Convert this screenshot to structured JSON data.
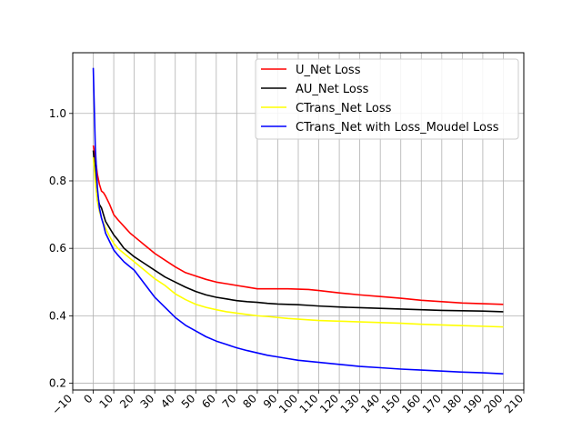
{
  "chart_data": {
    "type": "line",
    "title": "",
    "xlabel": "",
    "ylabel": "",
    "xlim": [
      -10,
      210
    ],
    "ylim": [
      0.18,
      1.18
    ],
    "x_ticks": [
      -10,
      0,
      10,
      20,
      30,
      40,
      50,
      60,
      70,
      80,
      90,
      100,
      110,
      120,
      130,
      140,
      150,
      160,
      170,
      180,
      190,
      200,
      210
    ],
    "y_ticks": [
      0.2,
      0.4,
      0.6,
      0.8,
      1.0
    ],
    "x_tick_labels": [
      "−10",
      "0",
      "10",
      "20",
      "30",
      "40",
      "50",
      "60",
      "70",
      "80",
      "90",
      "100",
      "110",
      "120",
      "130",
      "140",
      "150",
      "160",
      "170",
      "180",
      "190",
      "200",
      "210"
    ],
    "y_tick_labels": [
      "0.2",
      "0.4",
      "0.6",
      "0.8",
      "1.0"
    ],
    "grid": true,
    "legend_position": "top-right",
    "x": [
      0,
      1,
      2,
      3,
      4,
      5,
      6,
      8,
      10,
      12,
      15,
      18,
      20,
      25,
      30,
      35,
      40,
      45,
      50,
      55,
      60,
      65,
      70,
      75,
      80,
      85,
      90,
      95,
      100,
      105,
      110,
      120,
      130,
      140,
      150,
      160,
      170,
      180,
      190,
      200
    ],
    "series": [
      {
        "name": "U_Net Loss",
        "color": "#ff0000",
        "values": [
          0.905,
          0.87,
          0.82,
          0.79,
          0.77,
          0.765,
          0.755,
          0.73,
          0.7,
          0.685,
          0.665,
          0.645,
          0.635,
          0.61,
          0.585,
          0.565,
          0.545,
          0.528,
          0.518,
          0.508,
          0.5,
          0.495,
          0.49,
          0.485,
          0.48,
          0.48,
          0.48,
          0.48,
          0.479,
          0.478,
          0.475,
          0.468,
          0.462,
          0.457,
          0.452,
          0.446,
          0.442,
          0.438,
          0.436,
          0.434
        ]
      },
      {
        "name": "AU_Net Loss",
        "color": "#000000",
        "values": [
          0.89,
          0.83,
          0.76,
          0.73,
          0.72,
          0.7,
          0.68,
          0.66,
          0.64,
          0.625,
          0.6,
          0.585,
          0.575,
          0.555,
          0.535,
          0.515,
          0.5,
          0.485,
          0.472,
          0.462,
          0.455,
          0.45,
          0.445,
          0.442,
          0.44,
          0.437,
          0.435,
          0.434,
          0.433,
          0.431,
          0.429,
          0.426,
          0.424,
          0.422,
          0.42,
          0.418,
          0.416,
          0.415,
          0.414,
          0.412
        ]
      },
      {
        "name": "CTrans_Net Loss",
        "color": "#ffff00",
        "values": [
          0.87,
          0.8,
          0.74,
          0.71,
          0.69,
          0.675,
          0.66,
          0.635,
          0.615,
          0.6,
          0.585,
          0.57,
          0.56,
          0.535,
          0.51,
          0.49,
          0.465,
          0.448,
          0.434,
          0.425,
          0.418,
          0.412,
          0.408,
          0.404,
          0.4,
          0.398,
          0.395,
          0.392,
          0.39,
          0.388,
          0.386,
          0.384,
          0.382,
          0.38,
          0.378,
          0.375,
          0.373,
          0.371,
          0.369,
          0.367
        ]
      },
      {
        "name": "CTrans_Net with Loss_Moudel Loss",
        "color": "#0000ff",
        "values": [
          1.135,
          0.9,
          0.78,
          0.72,
          0.69,
          0.67,
          0.645,
          0.62,
          0.595,
          0.58,
          0.56,
          0.545,
          0.535,
          0.495,
          0.455,
          0.425,
          0.395,
          0.372,
          0.355,
          0.338,
          0.325,
          0.315,
          0.305,
          0.297,
          0.29,
          0.283,
          0.278,
          0.273,
          0.268,
          0.265,
          0.262,
          0.256,
          0.25,
          0.246,
          0.242,
          0.239,
          0.236,
          0.233,
          0.231,
          0.228
        ]
      }
    ]
  }
}
